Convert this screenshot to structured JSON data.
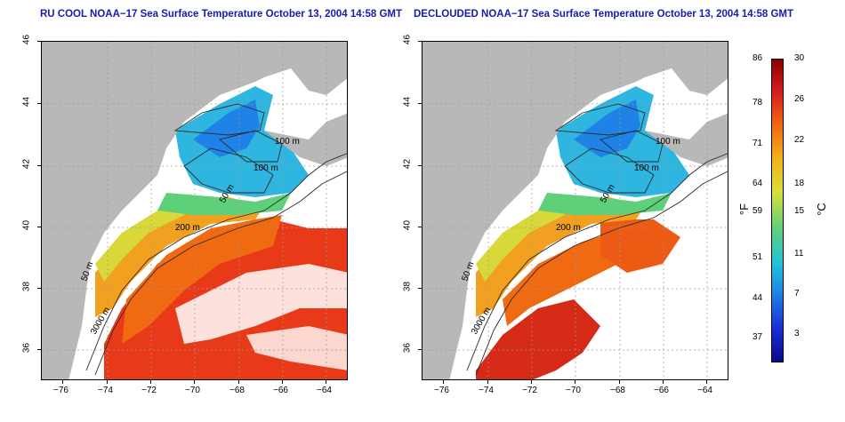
{
  "panels": [
    {
      "id": "left",
      "title": "RU COOL NOAA−17 Sea Surface Temperature October 13, 2004 14:58 GMT",
      "contour_labels": [
        "100 m",
        "100 m",
        "50 m",
        "200 m",
        "50 m",
        "3000 m"
      ]
    },
    {
      "id": "right",
      "title": "DECLOUDED NOAA−17 Sea Surface Temperature October 13, 2004 14:58 GMT",
      "contour_labels": [
        "100 m",
        "100 m",
        "50 m",
        "200 m",
        "50 m",
        "3000 m"
      ]
    }
  ],
  "axes": {
    "lon_ticks": [
      "−76",
      "−74",
      "−72",
      "−70",
      "−68",
      "−66",
      "−64"
    ],
    "lat_ticks": [
      "36",
      "38",
      "40",
      "42",
      "44",
      "46"
    ],
    "lon_range": [
      -77,
      -63
    ],
    "lat_range": [
      35,
      46
    ]
  },
  "colorbar": {
    "fahrenheit_ticks": [
      "86",
      "78",
      "71",
      "64",
      "59",
      "51",
      "44",
      "37"
    ],
    "celsius_ticks": [
      "30",
      "26",
      "22",
      "18",
      "15",
      "11",
      "7",
      "3"
    ],
    "fahrenheit_unit": "°F",
    "celsius_unit": "°C",
    "colors": [
      "#8b0000",
      "#d81e1e",
      "#f26a10",
      "#f3b21a",
      "#d6e03a",
      "#5fd07a",
      "#22c4d6",
      "#1e7fe6",
      "#1a2fd6",
      "#0a0a8c"
    ]
  },
  "colors": {
    "land": "#b8b8b8",
    "title": "#1a1ab0",
    "cloud": "#ffffff",
    "contour": "#2a2a2a",
    "grid": "#9a9a9a"
  }
}
